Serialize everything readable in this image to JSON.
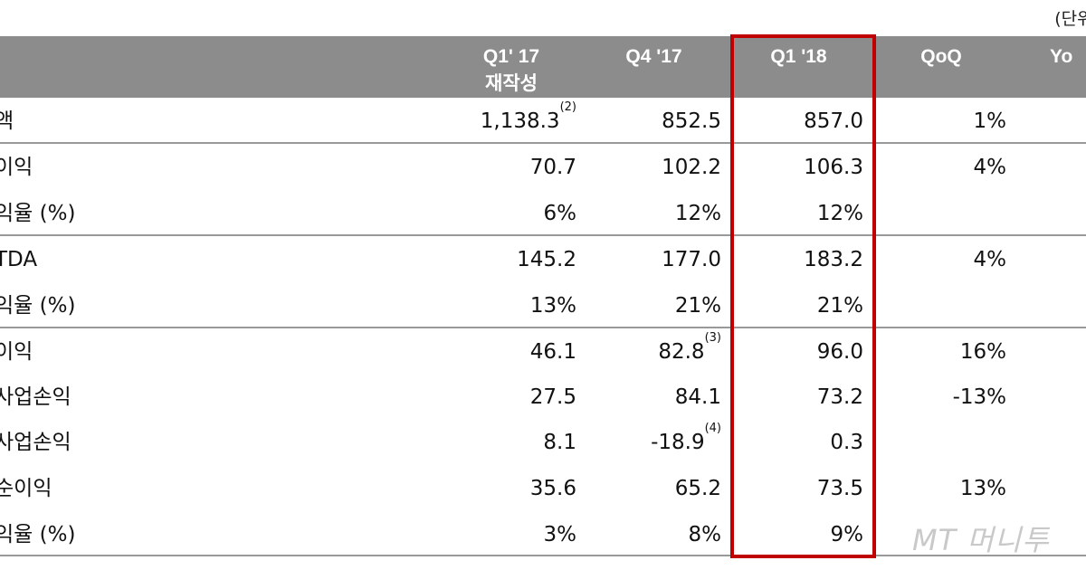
{
  "unit_label": "(단위: ",
  "header": {
    "col1_line1": "Q1' 17",
    "col1_line2": "재작성",
    "col2": "Q4 '17",
    "col3": "Q1 '18",
    "col4": "QoQ",
    "col5": "Yo"
  },
  "rows": [
    {
      "label": "액",
      "c1": "1,138.3",
      "c1_note": "(2)",
      "c2": "852.5",
      "c2_note": "",
      "c3": "857.0",
      "c4": "1%"
    },
    {
      "label": "이익",
      "c1": "70.7",
      "c1_note": "",
      "c2": "102.2",
      "c2_note": "",
      "c3": "106.3",
      "c4": "4%"
    },
    {
      "label": "익율 (%)",
      "c1": "6%",
      "c1_note": "",
      "c2": "12%",
      "c2_note": "",
      "c3": "12%",
      "c4": ""
    },
    {
      "label": "TDA",
      "c1": "145.2",
      "c1_note": "",
      "c2": "177.0",
      "c2_note": "",
      "c3": "183.2",
      "c4": "4%"
    },
    {
      "label": "익율 (%)",
      "c1": "13%",
      "c1_note": "",
      "c2": "21%",
      "c2_note": "",
      "c3": "21%",
      "c4": ""
    },
    {
      "label": "이익",
      "c1": "46.1",
      "c1_note": "",
      "c2": "82.8",
      "c2_note": "(3)",
      "c3": "96.0",
      "c4": "16%"
    },
    {
      "label": "사업손익",
      "c1": "27.5",
      "c1_note": "",
      "c2": "84.1",
      "c2_note": "",
      "c3": "73.2",
      "c4": "-13%"
    },
    {
      "label": "사업손익",
      "c1": "8.1",
      "c1_note": "",
      "c2": "-18.9",
      "c2_note": "(4)",
      "c3": "0.3",
      "c4": ""
    },
    {
      "label": "순이익",
      "c1": "35.6",
      "c1_note": "",
      "c2": "65.2",
      "c2_note": "",
      "c3": "73.5",
      "c4": "13%"
    },
    {
      "label": "익율 (%)",
      "c1": "3%",
      "c1_note": "",
      "c2": "8%",
      "c2_note": "",
      "c3": "9%",
      "c4": ""
    }
  ],
  "watermark": "MT 머니투",
  "colors": {
    "header_bg": "#8c8c8c",
    "highlight_border": "#c00000",
    "rule": "#999999"
  }
}
